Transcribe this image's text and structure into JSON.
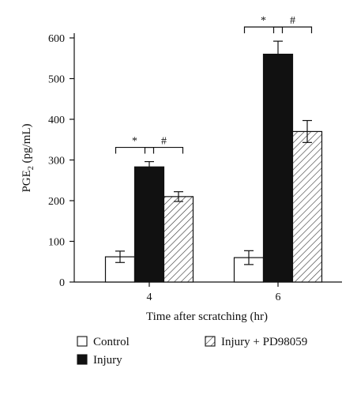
{
  "chart_data": {
    "type": "bar",
    "title": "",
    "ylabel": "PGE",
    "ylabel_sub": "2",
    "ylabel_unit": " (pg/mL)",
    "xlabel": "Time after scratching (hr)",
    "categories": [
      "4",
      "6"
    ],
    "ylim": [
      0,
      600
    ],
    "yticks": [
      0,
      100,
      200,
      300,
      400,
      500,
      600
    ],
    "series": [
      {
        "name": "Control",
        "fill": "white",
        "values": [
          62,
          60
        ],
        "errors": [
          14,
          17
        ]
      },
      {
        "name": "Injury",
        "fill": "black",
        "values": [
          283,
          560
        ],
        "errors": [
          13,
          32
        ]
      },
      {
        "name": "Injury + PD98059",
        "fill": "hatched",
        "values": [
          210,
          370
        ],
        "errors": [
          12,
          27
        ]
      }
    ],
    "significance": [
      {
        "symbol": "*",
        "category": 0,
        "from": 0,
        "to": 1
      },
      {
        "symbol": "#",
        "category": 0,
        "from": 1,
        "to": 2
      },
      {
        "symbol": "*",
        "category": 1,
        "from": 0,
        "to": 1
      },
      {
        "symbol": "#",
        "category": 1,
        "from": 1,
        "to": 2
      }
    ],
    "legend_placement": "bottom",
    "colors": {
      "black": "#111111",
      "white": "#ffffff",
      "hatch": "#333333"
    }
  }
}
